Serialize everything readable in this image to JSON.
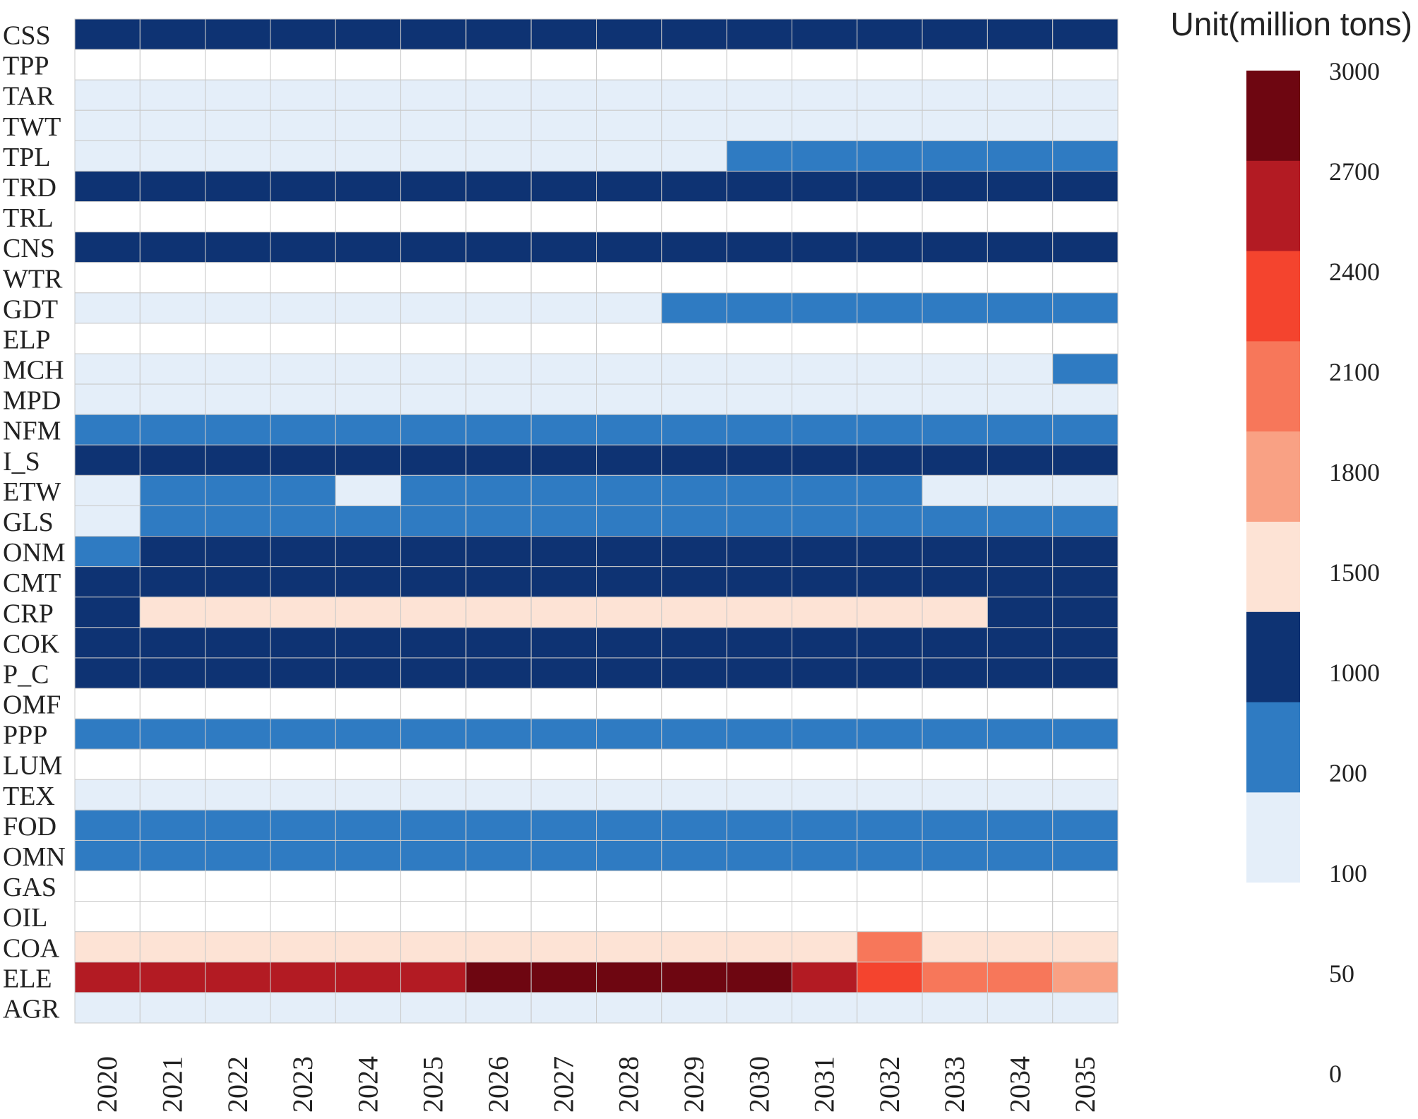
{
  "chart_data": {
    "type": "heatmap",
    "title": "",
    "xlabel": "",
    "ylabel": "",
    "legend_title": "Unit(million tons)",
    "legend_position": "right",
    "x": [
      "2020",
      "2021",
      "2022",
      "2023",
      "2024",
      "2025",
      "2026",
      "2027",
      "2028",
      "2029",
      "2030",
      "2031",
      "2032",
      "2033",
      "2034",
      "2035"
    ],
    "y": [
      "CSS",
      "TPP",
      "TAR",
      "TWT",
      "TPL",
      "TRD",
      "TRL",
      "CNS",
      "WTR",
      "GDT",
      "ELP",
      "MCH",
      "MPD",
      "NFM",
      "I_S",
      "ETW",
      "GLS",
      "ONM",
      "CMT",
      "CRP",
      "COK",
      "P_C",
      "OMF",
      "PPP",
      "LUM",
      "TEX",
      "FOD",
      "OMN",
      "GAS",
      "OIL",
      "COA",
      "ELE",
      "AGR"
    ],
    "bins": [
      0,
      50,
      100,
      200,
      1000,
      1500,
      1800,
      2100,
      2400,
      2700,
      3000
    ],
    "bin_colors": [
      "#ffffff",
      "#e4eef9",
      "#2f7bc2",
      "#0e3373",
      "#fde3d5",
      "#f9a184",
      "#f7775a",
      "#f4442e",
      "#b31b23",
      "#6e0611"
    ],
    "colorbar_ticks": [
      "3000",
      "2700",
      "2400",
      "2100",
      "1800",
      "1500",
      "1000",
      "200",
      "100",
      "50",
      "0"
    ],
    "bin_index_matrix": [
      [
        3,
        3,
        3,
        3,
        3,
        3,
        3,
        3,
        3,
        3,
        3,
        3,
        3,
        3,
        3,
        3
      ],
      [
        0,
        0,
        0,
        0,
        0,
        0,
        0,
        0,
        0,
        0,
        0,
        0,
        0,
        0,
        0,
        0
      ],
      [
        1,
        1,
        1,
        1,
        1,
        1,
        1,
        1,
        1,
        1,
        1,
        1,
        1,
        1,
        1,
        1
      ],
      [
        1,
        1,
        1,
        1,
        1,
        1,
        1,
        1,
        1,
        1,
        1,
        1,
        1,
        1,
        1,
        1
      ],
      [
        1,
        1,
        1,
        1,
        1,
        1,
        1,
        1,
        1,
        1,
        2,
        2,
        2,
        2,
        2,
        2
      ],
      [
        3,
        3,
        3,
        3,
        3,
        3,
        3,
        3,
        3,
        3,
        3,
        3,
        3,
        3,
        3,
        3
      ],
      [
        0,
        0,
        0,
        0,
        0,
        0,
        0,
        0,
        0,
        0,
        0,
        0,
        0,
        0,
        0,
        0
      ],
      [
        3,
        3,
        3,
        3,
        3,
        3,
        3,
        3,
        3,
        3,
        3,
        3,
        3,
        3,
        3,
        3
      ],
      [
        0,
        0,
        0,
        0,
        0,
        0,
        0,
        0,
        0,
        0,
        0,
        0,
        0,
        0,
        0,
        0
      ],
      [
        1,
        1,
        1,
        1,
        1,
        1,
        1,
        1,
        1,
        2,
        2,
        2,
        2,
        2,
        2,
        2
      ],
      [
        0,
        0,
        0,
        0,
        0,
        0,
        0,
        0,
        0,
        0,
        0,
        0,
        0,
        0,
        0,
        0
      ],
      [
        1,
        1,
        1,
        1,
        1,
        1,
        1,
        1,
        1,
        1,
        1,
        1,
        1,
        1,
        1,
        2
      ],
      [
        1,
        1,
        1,
        1,
        1,
        1,
        1,
        1,
        1,
        1,
        1,
        1,
        1,
        1,
        1,
        1
      ],
      [
        2,
        2,
        2,
        2,
        2,
        2,
        2,
        2,
        2,
        2,
        2,
        2,
        2,
        2,
        2,
        2
      ],
      [
        3,
        3,
        3,
        3,
        3,
        3,
        3,
        3,
        3,
        3,
        3,
        3,
        3,
        3,
        3,
        3
      ],
      [
        1,
        2,
        2,
        2,
        1,
        2,
        2,
        2,
        2,
        2,
        2,
        2,
        2,
        1,
        1,
        1
      ],
      [
        1,
        2,
        2,
        2,
        2,
        2,
        2,
        2,
        2,
        2,
        2,
        2,
        2,
        2,
        2,
        2
      ],
      [
        2,
        3,
        3,
        3,
        3,
        3,
        3,
        3,
        3,
        3,
        3,
        3,
        3,
        3,
        3,
        3
      ],
      [
        3,
        3,
        3,
        3,
        3,
        3,
        3,
        3,
        3,
        3,
        3,
        3,
        3,
        3,
        3,
        3
      ],
      [
        3,
        4,
        4,
        4,
        4,
        4,
        4,
        4,
        4,
        4,
        4,
        4,
        4,
        4,
        3,
        3
      ],
      [
        3,
        3,
        3,
        3,
        3,
        3,
        3,
        3,
        3,
        3,
        3,
        3,
        3,
        3,
        3,
        3
      ],
      [
        3,
        3,
        3,
        3,
        3,
        3,
        3,
        3,
        3,
        3,
        3,
        3,
        3,
        3,
        3,
        3
      ],
      [
        0,
        0,
        0,
        0,
        0,
        0,
        0,
        0,
        0,
        0,
        0,
        0,
        0,
        0,
        0,
        0
      ],
      [
        2,
        2,
        2,
        2,
        2,
        2,
        2,
        2,
        2,
        2,
        2,
        2,
        2,
        2,
        2,
        2
      ],
      [
        0,
        0,
        0,
        0,
        0,
        0,
        0,
        0,
        0,
        0,
        0,
        0,
        0,
        0,
        0,
        0
      ],
      [
        1,
        1,
        1,
        1,
        1,
        1,
        1,
        1,
        1,
        1,
        1,
        1,
        1,
        1,
        1,
        1
      ],
      [
        2,
        2,
        2,
        2,
        2,
        2,
        2,
        2,
        2,
        2,
        2,
        2,
        2,
        2,
        2,
        2
      ],
      [
        2,
        2,
        2,
        2,
        2,
        2,
        2,
        2,
        2,
        2,
        2,
        2,
        2,
        2,
        2,
        2
      ],
      [
        0,
        0,
        0,
        0,
        0,
        0,
        0,
        0,
        0,
        0,
        0,
        0,
        0,
        0,
        0,
        0
      ],
      [
        0,
        0,
        0,
        0,
        0,
        0,
        0,
        0,
        0,
        0,
        0,
        0,
        0,
        0,
        0,
        0
      ],
      [
        4,
        4,
        4,
        4,
        4,
        4,
        4,
        4,
        4,
        4,
        4,
        4,
        6,
        4,
        4,
        4
      ],
      [
        8,
        8,
        8,
        8,
        8,
        8,
        9,
        9,
        9,
        9,
        9,
        8,
        7,
        6,
        6,
        5
      ],
      [
        1,
        1,
        1,
        1,
        1,
        1,
        1,
        1,
        1,
        1,
        1,
        1,
        1,
        1,
        1,
        1
      ]
    ]
  }
}
